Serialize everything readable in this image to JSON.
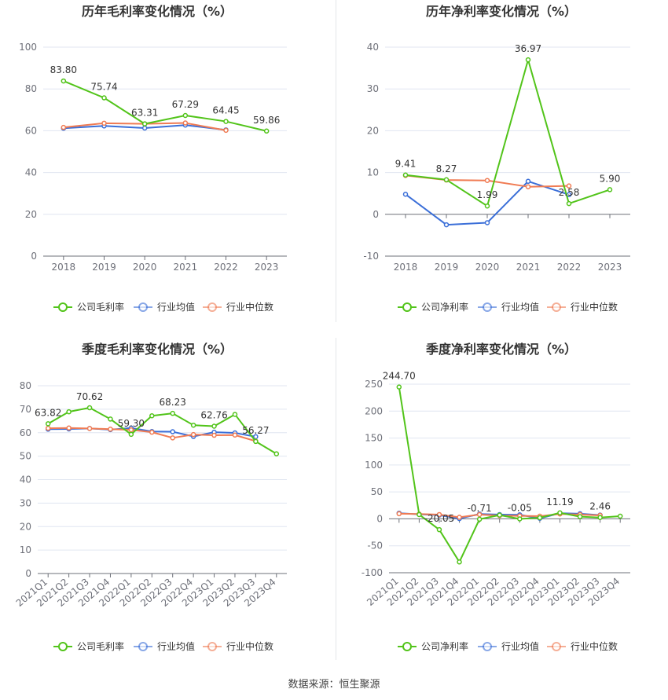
{
  "source_text": "数据来源：恒生聚源",
  "chart_data": [
    {
      "type": "line",
      "title": "历年毛利率变化情况（%）",
      "categories": [
        "2018",
        "2019",
        "2020",
        "2021",
        "2022",
        "2023"
      ],
      "ylim": [
        0,
        100
      ],
      "yticks": [
        0,
        20,
        40,
        60,
        80,
        100
      ],
      "rotate_x": false,
      "series": [
        {
          "name": "公司毛利率",
          "color": "#52c41a",
          "values": [
            83.8,
            75.74,
            63.31,
            67.29,
            64.45,
            59.86
          ]
        },
        {
          "name": "行业均值",
          "color": "#3b6fd8",
          "values": [
            61.2,
            62.3,
            61.3,
            62.7,
            60.4,
            null
          ]
        },
        {
          "name": "行业中位数",
          "color": "#f07b53",
          "values": [
            61.6,
            63.6,
            63.3,
            63.7,
            60.2,
            null
          ]
        }
      ],
      "labels": [
        {
          "i": 0,
          "text": "83.80"
        },
        {
          "i": 1,
          "text": "75.74"
        },
        {
          "i": 2,
          "text": "63.31"
        },
        {
          "i": 3,
          "text": "67.29"
        },
        {
          "i": 4,
          "text": "64.45"
        },
        {
          "i": 5,
          "text": "59.86"
        }
      ]
    },
    {
      "type": "line",
      "title": "历年净利率变化情况（%）",
      "categories": [
        "2018",
        "2019",
        "2020",
        "2021",
        "2022",
        "2023"
      ],
      "ylim": [
        -10,
        40
      ],
      "yticks": [
        -10,
        0,
        10,
        20,
        30,
        40
      ],
      "rotate_x": false,
      "series": [
        {
          "name": "公司净利率",
          "color": "#52c41a",
          "values": [
            9.41,
            8.27,
            1.99,
            36.97,
            2.58,
            5.9
          ]
        },
        {
          "name": "行业均值",
          "color": "#3b6fd8",
          "values": [
            4.8,
            -2.5,
            -2.0,
            7.9,
            4.7,
            null
          ]
        },
        {
          "name": "行业中位数",
          "color": "#f07b53",
          "values": [
            9.3,
            8.2,
            8.1,
            6.6,
            6.8,
            null
          ]
        }
      ],
      "labels": [
        {
          "i": 0,
          "text": "9.41"
        },
        {
          "i": 1,
          "text": "8.27"
        },
        {
          "i": 2,
          "text": "1.99"
        },
        {
          "i": 3,
          "text": "36.97"
        },
        {
          "i": 4,
          "text": "2.58"
        },
        {
          "i": 5,
          "text": "5.90"
        }
      ]
    },
    {
      "type": "line",
      "title": "季度毛利率变化情况（%）",
      "categories": [
        "2021Q1",
        "2021Q2",
        "2021Q3",
        "2021Q4",
        "2022Q1",
        "2022Q2",
        "2022Q3",
        "2022Q4",
        "2023Q1",
        "2023Q2",
        "2023Q3",
        "2023Q4"
      ],
      "ylim": [
        0,
        80
      ],
      "yticks": [
        0,
        10,
        20,
        30,
        40,
        50,
        60,
        70,
        80
      ],
      "rotate_x": true,
      "series": [
        {
          "name": "公司毛利率",
          "color": "#52c41a",
          "values": [
            63.82,
            68.9,
            70.62,
            65.8,
            59.3,
            67.2,
            68.23,
            63.2,
            62.76,
            67.8,
            56.27,
            51.0
          ]
        },
        {
          "name": "行业均值",
          "color": "#3b6fd8",
          "values": [
            61.5,
            61.6,
            61.8,
            61.3,
            62.0,
            60.5,
            60.4,
            58.4,
            60.2,
            59.9,
            58.3,
            null
          ]
        },
        {
          "name": "行业中位数",
          "color": "#f07b53",
          "values": [
            61.9,
            62.0,
            61.8,
            61.5,
            61.2,
            60.2,
            57.8,
            59.2,
            58.9,
            59.0,
            56.4,
            null
          ]
        }
      ],
      "labels": [
        {
          "i": 0,
          "text": "63.82"
        },
        {
          "i": 2,
          "text": "70.62"
        },
        {
          "i": 4,
          "text": "59.30"
        },
        {
          "i": 6,
          "text": "68.23"
        },
        {
          "i": 8,
          "text": "62.76"
        },
        {
          "i": 10,
          "text": "56.27"
        }
      ]
    },
    {
      "type": "line",
      "title": "季度净利率变化情况（%）",
      "categories": [
        "2021Q1",
        "2021Q2",
        "2021Q3",
        "2021Q4",
        "2022Q1",
        "2022Q2",
        "2022Q3",
        "2022Q4",
        "2023Q1",
        "2023Q2",
        "2023Q3",
        "2023Q4"
      ],
      "ylim": [
        -100,
        250
      ],
      "yticks": [
        -100,
        -50,
        0,
        50,
        100,
        150,
        200,
        250
      ],
      "rotate_x": true,
      "series": [
        {
          "name": "公司净利率",
          "color": "#52c41a",
          "values": [
            244.7,
            8.0,
            -20.05,
            -80.0,
            -0.71,
            7.0,
            -0.05,
            2.0,
            11.19,
            4.0,
            2.46,
            5.0
          ]
        },
        {
          "name": "行业均值",
          "color": "#3b6fd8",
          "values": [
            10.5,
            8.5,
            7.0,
            0.5,
            9.0,
            8.0,
            7.5,
            1.0,
            10.5,
            9.5,
            7.0,
            null
          ]
        },
        {
          "name": "行业中位数",
          "color": "#f07b53",
          "values": [
            9.5,
            9.0,
            8.0,
            3.0,
            8.0,
            6.0,
            5.5,
            5.0,
            9.0,
            8.0,
            6.5,
            null
          ]
        }
      ],
      "labels": [
        {
          "i": 0,
          "text": "244.70"
        },
        {
          "i": 2,
          "text": "-20.05"
        },
        {
          "i": 4,
          "text": "-0.71"
        },
        {
          "i": 6,
          "text": "-0.05"
        },
        {
          "i": 8,
          "text": "11.19"
        },
        {
          "i": 10,
          "text": "2.46"
        }
      ]
    }
  ]
}
